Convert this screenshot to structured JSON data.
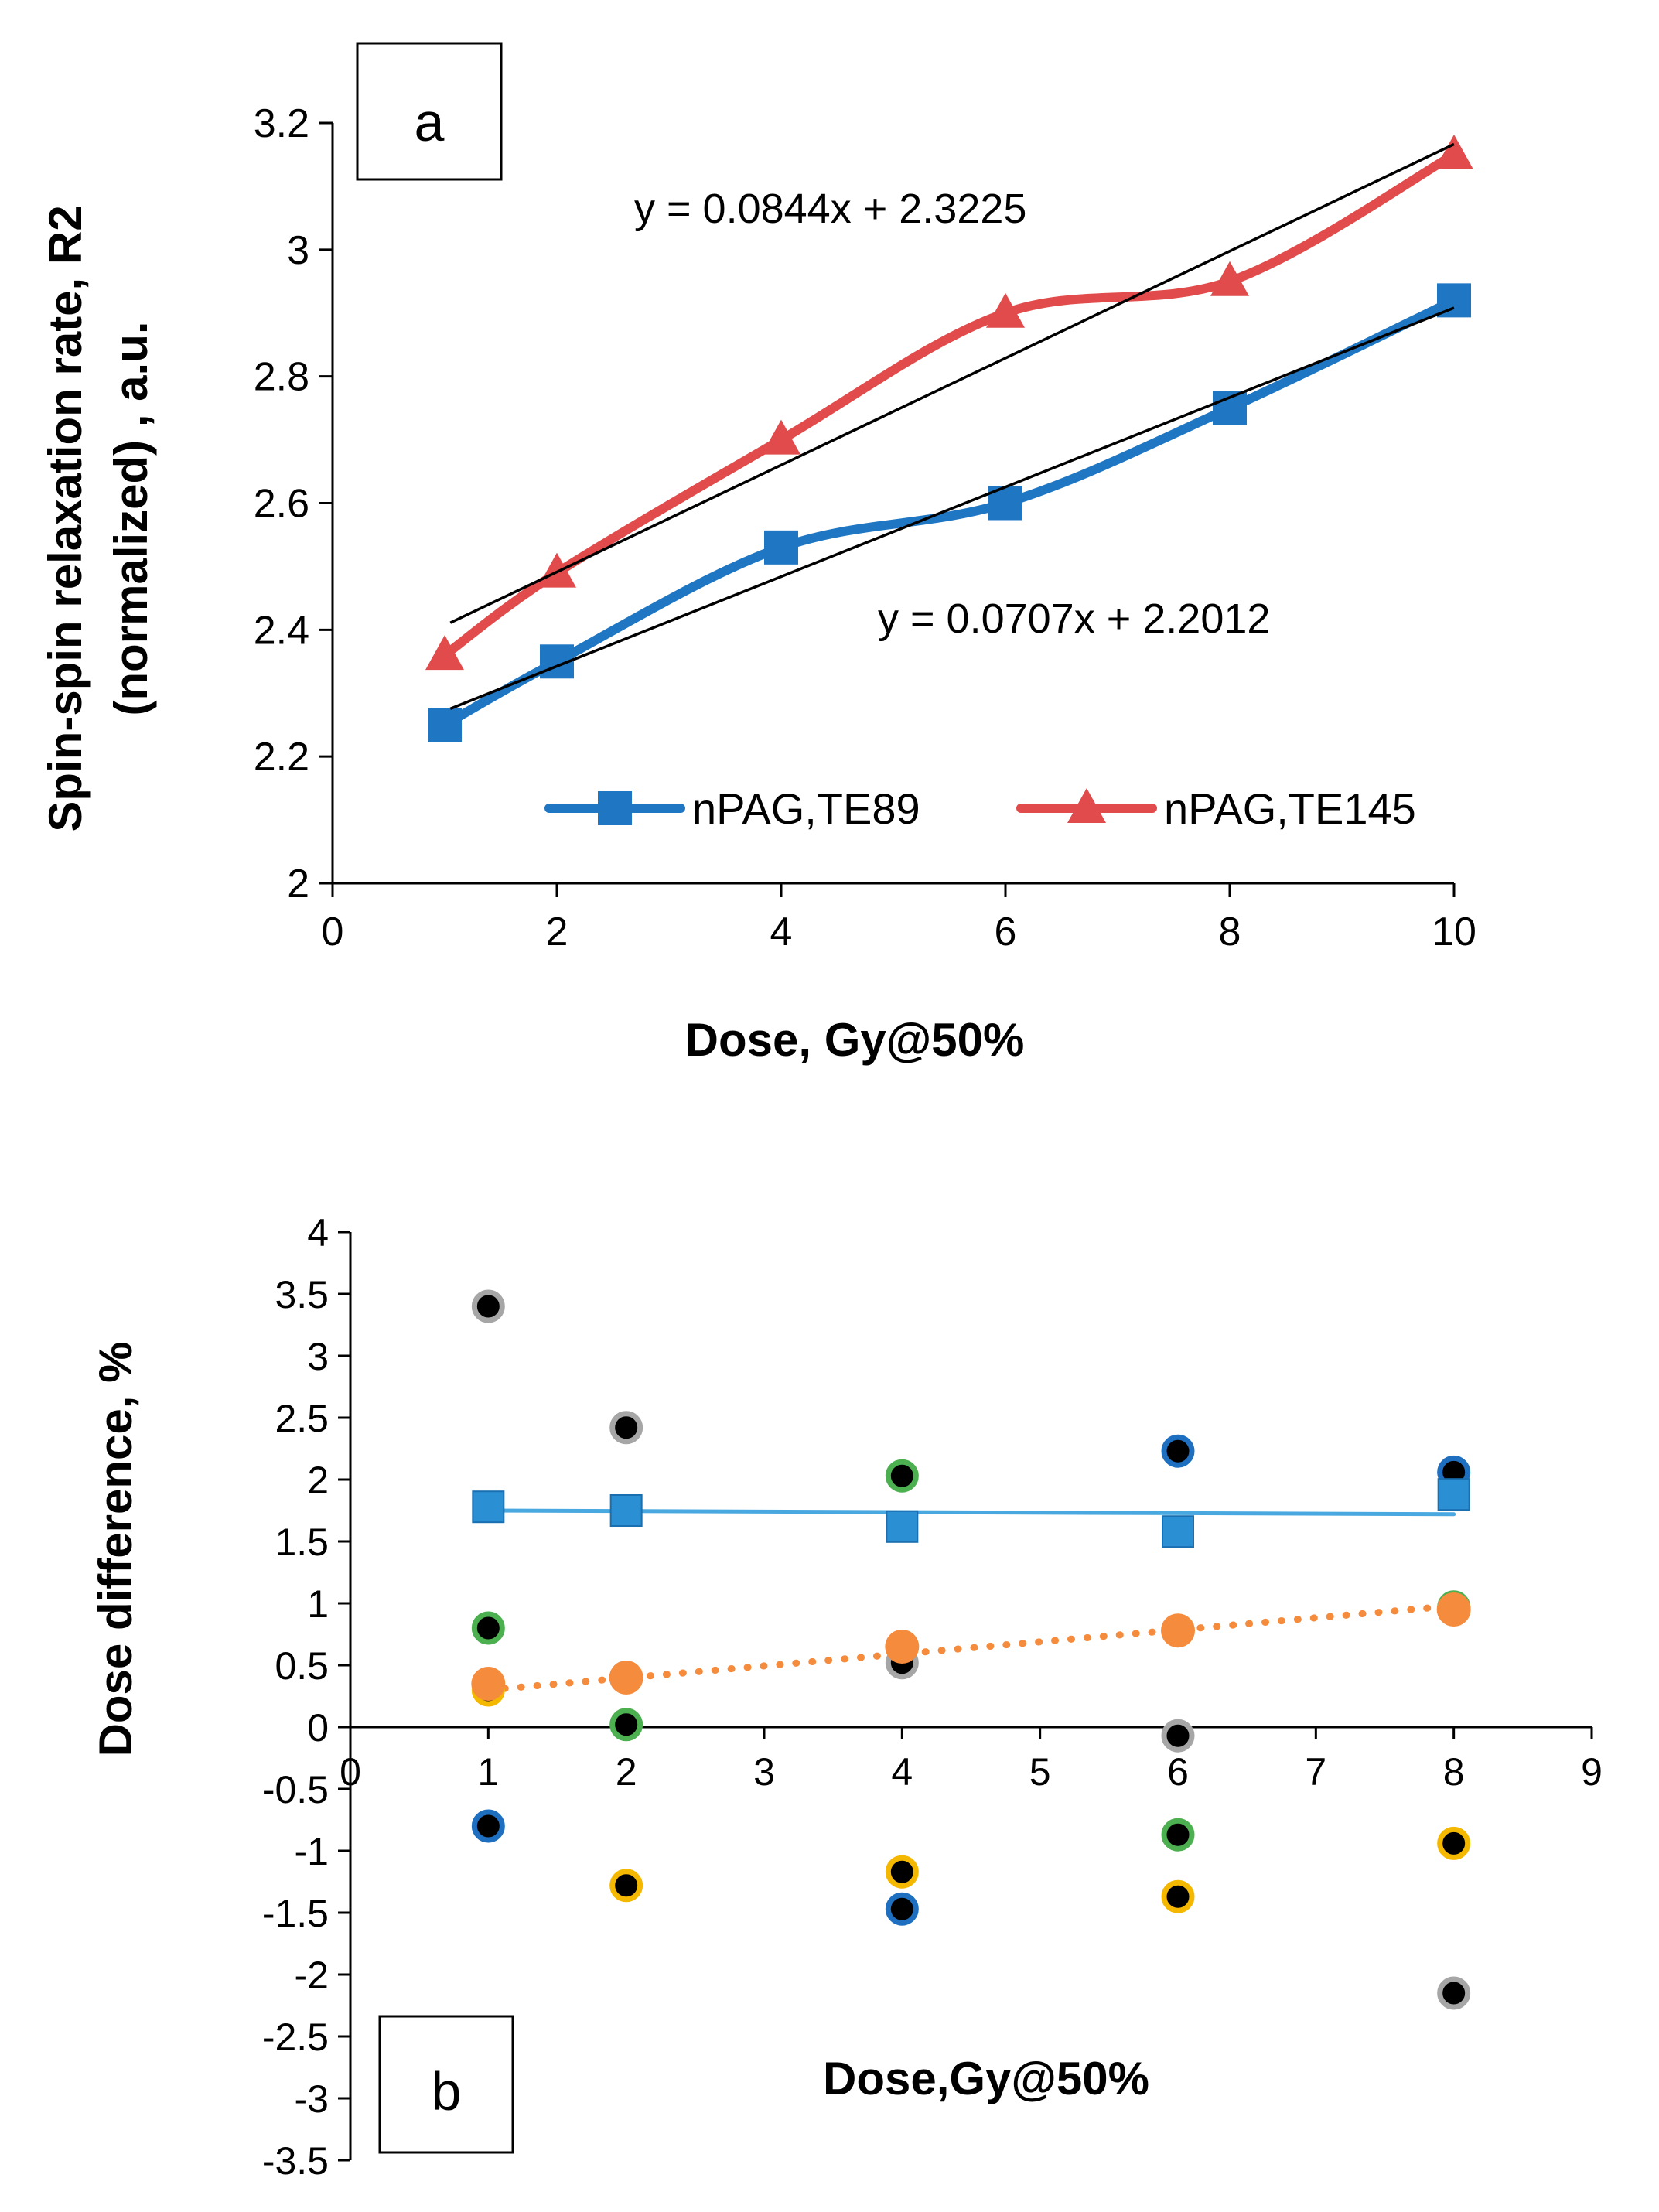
{
  "chart_data": [
    {
      "type": "line",
      "panel_label": "a",
      "title": "",
      "xlabel": "Dose, Gy@50%",
      "ylabel_line1": "Spin-spin relaxation rate, R2",
      "ylabel_line2": "(normalized) , a.u.",
      "xlim": [
        0,
        10
      ],
      "ylim": [
        2,
        3.2
      ],
      "xticks": [
        0,
        2,
        4,
        6,
        8,
        10
      ],
      "yticks": [
        2,
        2.2,
        2.4,
        2.6,
        2.8,
        3,
        3.2
      ],
      "xtick_labels": [
        "0",
        "2",
        "4",
        "6",
        "8",
        "10"
      ],
      "ytick_labels": [
        "2",
        "2.2",
        "2.4",
        "2.6",
        "2.8",
        "3",
        "3.2"
      ],
      "grid": false,
      "legend_position": "bottom-right inside plot",
      "series": [
        {
          "name": "nPAG,TE89",
          "color": "#1f77c4",
          "marker": "square",
          "x": [
            1,
            2,
            4,
            6,
            8,
            10
          ],
          "y": [
            2.25,
            2.35,
            2.53,
            2.6,
            2.75,
            2.92
          ]
        },
        {
          "name": "nPAG,TE145",
          "color": "#e14b4b",
          "marker": "triangle",
          "x": [
            1,
            2,
            4,
            6,
            8,
            10
          ],
          "y": [
            2.36,
            2.49,
            2.7,
            2.9,
            2.95,
            3.15
          ]
        }
      ],
      "trendlines": [
        {
          "series": "nPAG,TE145",
          "slope": 0.0844,
          "intercept": 2.3225,
          "x_range": [
            1,
            10
          ],
          "label": "y = 0.0844x + 2.3225"
        },
        {
          "series": "nPAG,TE89",
          "slope": 0.0707,
          "intercept": 2.2012,
          "x_range": [
            1,
            10
          ],
          "label": "y = 0.0707x + 2.2012"
        }
      ]
    },
    {
      "type": "scatter",
      "panel_label": "b",
      "title": "",
      "xlabel": "Dose,Gy@50%",
      "ylabel": "Dose difference, %",
      "xlim": [
        0,
        9
      ],
      "ylim": [
        -3.5,
        4
      ],
      "xticks": [
        0,
        1,
        2,
        3,
        4,
        5,
        6,
        7,
        8,
        9
      ],
      "yticks": [
        -3.5,
        -3,
        -2.5,
        -2,
        -1.5,
        -1,
        -0.5,
        0,
        0.5,
        1,
        1.5,
        2,
        2.5,
        3,
        3.5,
        4
      ],
      "xtick_labels": [
        "0",
        "1",
        "2",
        "3",
        "4",
        "5",
        "6",
        "7",
        "8",
        "9"
      ],
      "ytick_labels": [
        "-3.5",
        "-3",
        "-2.5",
        "-2",
        "-1.5",
        "-1",
        "-0.5",
        "0",
        "0.5",
        "1",
        "1.5",
        "2",
        "2.5",
        "3",
        "3.5",
        "4"
      ],
      "grid": false,
      "series": [
        {
          "name": "mean (squares)",
          "marker": "square",
          "color": "#2b8fd4",
          "x": [
            1,
            2,
            4,
            6,
            8
          ],
          "y": [
            1.78,
            1.75,
            1.62,
            1.58,
            1.88
          ],
          "trendline": {
            "style": "solid",
            "color": "#49a8e0",
            "x": [
              1,
              8
            ],
            "y": [
              1.75,
              1.72
            ]
          }
        },
        {
          "name": "mean (circles)",
          "marker": "circle",
          "color": "#f58b3c",
          "x": [
            1,
            2,
            4,
            6,
            8
          ],
          "y": [
            0.35,
            0.4,
            0.65,
            0.78,
            0.95
          ],
          "trendline": {
            "style": "dotted",
            "color": "#f58b3c",
            "x": [
              1,
              8
            ],
            "y": [
              0.3,
              0.98
            ]
          }
        },
        {
          "name": "grey ring",
          "marker": "dot",
          "color": "#000000",
          "edge": "#a6a6a6",
          "x": [
            1,
            2,
            4,
            6,
            8
          ],
          "y": [
            3.4,
            2.42,
            0.52,
            -0.07,
            -2.15
          ]
        },
        {
          "name": "blue ring",
          "marker": "dot",
          "color": "#000000",
          "edge": "#1f6fc0",
          "x": [
            1,
            4,
            6,
            8
          ],
          "y": [
            -0.8,
            -1.47,
            2.23,
            2.06
          ]
        },
        {
          "name": "green ring",
          "marker": "dot",
          "color": "#000000",
          "edge": "#4caf50",
          "x": [
            1,
            2,
            4,
            6,
            8
          ],
          "y": [
            0.8,
            0.02,
            2.03,
            -0.87,
            0.97
          ]
        },
        {
          "name": "yellow ring",
          "marker": "dot",
          "color": "#000000",
          "edge": "#f5b800",
          "x": [
            1,
            2,
            4,
            6,
            8
          ],
          "y": [
            0.3,
            -1.28,
            -1.17,
            -1.37,
            -0.94
          ]
        }
      ]
    }
  ]
}
